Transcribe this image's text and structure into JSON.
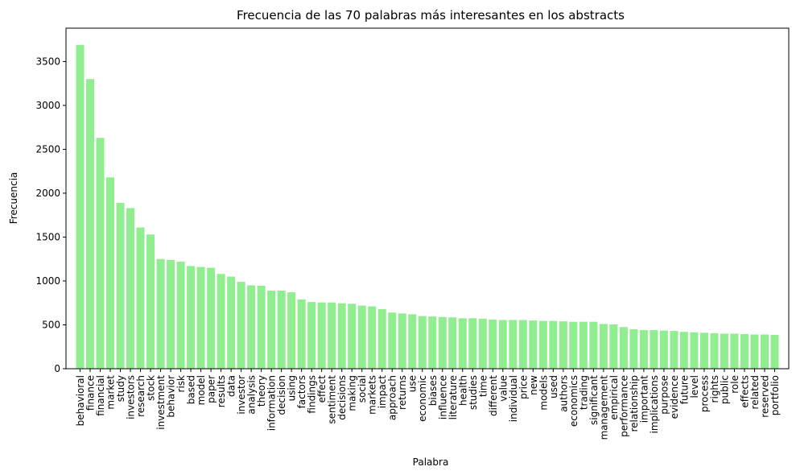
{
  "chart_data": {
    "type": "bar",
    "title": "Frecuencia de las 70 palabras más interesantes en los abstracts",
    "xlabel": "Palabra",
    "ylabel": "Frecuencia",
    "ylim": [
      0,
      3880
    ],
    "yticks": [
      0,
      500,
      1000,
      1500,
      2000,
      2500,
      3000,
      3500
    ],
    "bar_color": "#90EE90",
    "grid": false,
    "categories": [
      "behavioral",
      "finance",
      "financial",
      "market",
      "study",
      "investors",
      "research",
      "stock",
      "investment",
      "behavior",
      "risk",
      "based",
      "model",
      "paper",
      "results",
      "data",
      "investor",
      "analysis",
      "theory",
      "information",
      "decision",
      "using",
      "factors",
      "findings",
      "effect",
      "sentiment",
      "decisions",
      "making",
      "social",
      "markets",
      "impact",
      "approach",
      "returns",
      "use",
      "economic",
      "biases",
      "influence",
      "literature",
      "health",
      "studies",
      "time",
      "different",
      "value",
      "individual",
      "price",
      "new",
      "models",
      "used",
      "authors",
      "economics",
      "trading",
      "significant",
      "management",
      "empirical",
      "performance",
      "relationship",
      "important",
      "implications",
      "purpose",
      "evidence",
      "future",
      "level",
      "process",
      "rights",
      "public",
      "role",
      "effects",
      "related",
      "reserved",
      "portfolio"
    ],
    "values": [
      3690,
      3300,
      2630,
      2180,
      1890,
      1830,
      1610,
      1530,
      1250,
      1240,
      1220,
      1170,
      1160,
      1150,
      1080,
      1050,
      990,
      950,
      945,
      890,
      890,
      870,
      790,
      760,
      755,
      755,
      745,
      740,
      720,
      710,
      680,
      640,
      630,
      620,
      600,
      595,
      590,
      585,
      575,
      575,
      570,
      560,
      555,
      555,
      555,
      550,
      545,
      545,
      540,
      535,
      535,
      535,
      510,
      505,
      475,
      450,
      440,
      440,
      435,
      430,
      420,
      415,
      410,
      405,
      400,
      400,
      395,
      390,
      390,
      385
    ]
  }
}
